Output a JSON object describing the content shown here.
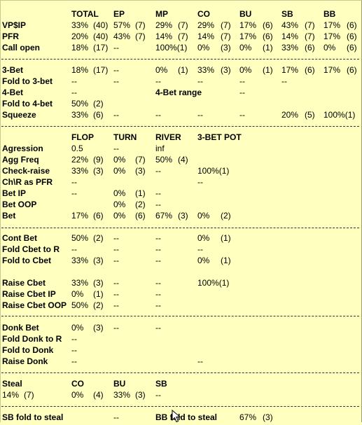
{
  "sections": [
    {
      "id": "preflop",
      "header": [
        "TOTAL",
        "EP",
        "MP",
        "CO",
        "BU",
        "SB",
        "BB"
      ],
      "rows": [
        {
          "label": "VP$IP",
          "cells": [
            "33%",
            "(40)",
            "57%",
            "(7)",
            "29%",
            "(7)",
            "29%",
            "(7)",
            "17%",
            "(6)",
            "43%",
            "(7)",
            "17%",
            "(6)"
          ]
        },
        {
          "label": "PFR",
          "cells": [
            "20%",
            "(40)",
            "43%",
            "(7)",
            "14%",
            "(7)",
            "14%",
            "(7)",
            "17%",
            "(6)",
            "14%",
            "(7)",
            "17%",
            "(6)"
          ]
        },
        {
          "label": "Call open",
          "cells": [
            "18%",
            "(17)",
            "--",
            "",
            "100%(1)",
            "",
            "0%",
            "(3)",
            "0%",
            "(1)",
            "33%",
            "(6)",
            "0%",
            "(6)"
          ]
        }
      ]
    },
    {
      "id": "threebet",
      "rows": [
        {
          "label": "3-Bet",
          "cells": [
            "18%",
            "(17)",
            "--",
            "",
            "0%",
            "(1)",
            "33%",
            "(3)",
            "0%",
            "(1)",
            "17%",
            "(6)",
            "17%",
            "(6)"
          ]
        },
        {
          "label": "Fold to 3-bet",
          "cells": [
            "--",
            "",
            "--",
            "",
            "--",
            "",
            "--",
            "",
            "--",
            "",
            "--",
            "",
            "",
            ""
          ]
        },
        {
          "label": "4-Bet",
          "cells": [
            "--",
            "",
            "",
            "",
            "4-Bet range",
            "",
            "",
            "",
            "--",
            "",
            "",
            "",
            "",
            ""
          ]
        },
        {
          "label": "Fold to 4-bet",
          "cells": [
            "50%",
            "(2)",
            "",
            "",
            "",
            "",
            "",
            "",
            "",
            "",
            "",
            "",
            "",
            ""
          ]
        },
        {
          "label": "Squeeze",
          "cells": [
            "33%",
            "(6)",
            "--",
            "",
            "--",
            "",
            "--",
            "",
            "--",
            "",
            "20%",
            "(5)",
            "100%(1)",
            ""
          ]
        }
      ]
    },
    {
      "id": "postflop",
      "header": [
        "FLOP",
        "TURN",
        "RIVER",
        "3-BET POT"
      ],
      "rows": [
        {
          "label": "Agression",
          "cells": [
            "0.5",
            "",
            "--",
            "",
            "inf",
            "",
            "",
            ""
          ]
        },
        {
          "label": "Agg Freq",
          "cells": [
            "22%",
            "(9)",
            "0%",
            "(7)",
            "50%",
            "(4)",
            "",
            ""
          ]
        },
        {
          "label": "Check-raise",
          "cells": [
            "33%",
            "(3)",
            "0%",
            "(3)",
            "--",
            "",
            "100%(1)",
            ""
          ]
        },
        {
          "label": "Ch\\R as PFR",
          "cells": [
            "--",
            "",
            "",
            "",
            "",
            "",
            "--",
            ""
          ]
        },
        {
          "label": "Bet IP",
          "cells": [
            "--",
            "",
            "0%",
            "(1)",
            "--",
            "",
            "",
            ""
          ]
        },
        {
          "label": "Bet OOP",
          "cells": [
            "",
            "",
            "0%",
            "(2)",
            "--",
            "",
            "",
            ""
          ]
        },
        {
          "label": "Bet",
          "cells": [
            "17%",
            "(6)",
            "0%",
            "(6)",
            "67%",
            "(3)",
            "0%",
            "(2)"
          ]
        }
      ]
    },
    {
      "id": "cbet",
      "rows": [
        {
          "label": "Cont Bet",
          "cells": [
            "50%",
            "(2)",
            "--",
            "",
            "--",
            "",
            "0%",
            "(1)"
          ]
        },
        {
          "label": "Fold Cbet to R",
          "cells": [
            "--",
            "",
            "--",
            "",
            "--",
            "",
            "--",
            ""
          ]
        },
        {
          "label": "Fold to Cbet",
          "cells": [
            "33%",
            "(3)",
            "--",
            "",
            "--",
            "",
            "0%",
            "(1)"
          ]
        },
        {
          "label": "",
          "cells": [
            "",
            "",
            "",
            "",
            "",
            "",
            "",
            ""
          ]
        },
        {
          "label": "Raise Cbet",
          "cells": [
            "33%",
            "(3)",
            "--",
            "",
            "--",
            "",
            "100%(1)",
            ""
          ]
        },
        {
          "label": "Raise Cbet IP",
          "cells": [
            "0%",
            "(1)",
            "--",
            "",
            "--",
            "",
            "",
            ""
          ]
        },
        {
          "label": "Raise Cbet OOP",
          "cells": [
            "50%",
            "(2)",
            "--",
            "",
            "--",
            "",
            "",
            ""
          ]
        }
      ]
    },
    {
      "id": "donk",
      "rows": [
        {
          "label": "Donk Bet",
          "cells": [
            "0%",
            "(3)",
            "--",
            "",
            "--",
            "",
            "",
            ""
          ]
        },
        {
          "label": "Fold Donk to R",
          "cells": [
            "--",
            "",
            "",
            "",
            "",
            "",
            "",
            ""
          ]
        },
        {
          "label": "Fold to Donk",
          "cells": [
            "--",
            "",
            "",
            "",
            "",
            "",
            "",
            ""
          ]
        },
        {
          "label": "Raise Donk",
          "cells": [
            "--",
            "",
            "",
            "",
            "",
            "",
            "--",
            ""
          ]
        }
      ]
    },
    {
      "id": "steal",
      "header_label": "Steal",
      "header": [
        "CO",
        "BU",
        "SB"
      ],
      "rows": [
        {
          "label": "14%",
          "sub": "(7)",
          "cells": [
            "0%",
            "(4)",
            "33%",
            "(3)",
            "--",
            ""
          ]
        }
      ]
    },
    {
      "id": "fold_to_steal",
      "rows": [
        {
          "label": "SB fold to steal",
          "cells": [
            "--",
            "BB fold to steal",
            "67%",
            "(3)"
          ]
        }
      ]
    }
  ]
}
